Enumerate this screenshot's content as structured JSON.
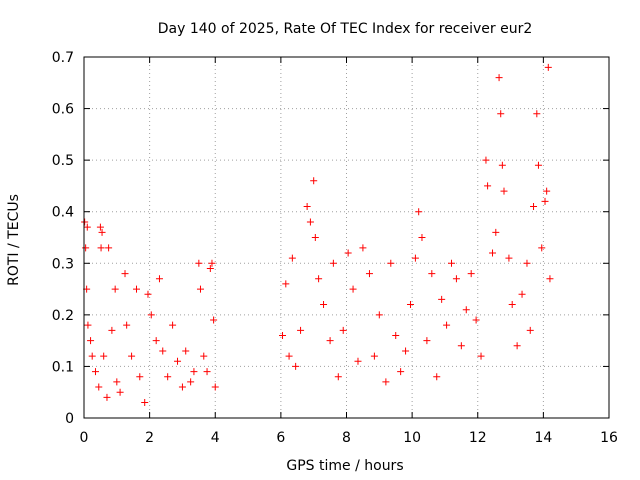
{
  "chart_data": {
    "type": "scatter",
    "title": "Day 140 of 2025, Rate Of TEC Index for receiver eur2",
    "xlabel": "GPS time / hours",
    "ylabel": "ROTI / TECUs",
    "xlim": [
      0,
      16
    ],
    "ylim": [
      0,
      0.7
    ],
    "xticks": [
      "0",
      "2",
      "4",
      "6",
      "8",
      "10",
      "12",
      "14",
      "16"
    ],
    "yticks": [
      "0",
      "0.1",
      "0.2",
      "0.3",
      "0.4",
      "0.5",
      "0.6",
      "0.7"
    ],
    "grid": true,
    "marker": "+",
    "color": "#ff0000",
    "series": [
      {
        "name": "eur2",
        "points": [
          [
            0.02,
            0.38
          ],
          [
            0.05,
            0.33
          ],
          [
            0.1,
            0.37
          ],
          [
            0.08,
            0.25
          ],
          [
            0.12,
            0.18
          ],
          [
            0.2,
            0.15
          ],
          [
            0.25,
            0.12
          ],
          [
            0.35,
            0.09
          ],
          [
            0.45,
            0.06
          ],
          [
            0.5,
            0.37
          ],
          [
            0.52,
            0.33
          ],
          [
            0.55,
            0.36
          ],
          [
            0.6,
            0.12
          ],
          [
            0.7,
            0.04
          ],
          [
            0.75,
            0.33
          ],
          [
            0.85,
            0.17
          ],
          [
            0.95,
            0.25
          ],
          [
            1.0,
            0.07
          ],
          [
            1.1,
            0.05
          ],
          [
            1.25,
            0.28
          ],
          [
            1.3,
            0.18
          ],
          [
            1.45,
            0.12
          ],
          [
            1.6,
            0.25
          ],
          [
            1.7,
            0.08
          ],
          [
            1.85,
            0.03
          ],
          [
            1.95,
            0.24
          ],
          [
            2.05,
            0.2
          ],
          [
            2.2,
            0.15
          ],
          [
            2.3,
            0.27
          ],
          [
            2.4,
            0.13
          ],
          [
            2.55,
            0.08
          ],
          [
            2.7,
            0.18
          ],
          [
            2.85,
            0.11
          ],
          [
            3.0,
            0.06
          ],
          [
            3.1,
            0.13
          ],
          [
            3.25,
            0.07
          ],
          [
            3.35,
            0.09
          ],
          [
            3.5,
            0.3
          ],
          [
            3.55,
            0.25
          ],
          [
            3.65,
            0.12
          ],
          [
            3.75,
            0.09
          ],
          [
            3.85,
            0.29
          ],
          [
            3.9,
            0.3
          ],
          [
            3.95,
            0.19
          ],
          [
            4.0,
            0.06
          ],
          [
            6.05,
            0.16
          ],
          [
            6.15,
            0.26
          ],
          [
            6.25,
            0.12
          ],
          [
            6.35,
            0.31
          ],
          [
            6.45,
            0.1
          ],
          [
            6.6,
            0.17
          ],
          [
            6.8,
            0.41
          ],
          [
            6.9,
            0.38
          ],
          [
            7.0,
            0.46
          ],
          [
            7.05,
            0.35
          ],
          [
            7.15,
            0.27
          ],
          [
            7.3,
            0.22
          ],
          [
            7.5,
            0.15
          ],
          [
            7.6,
            0.3
          ],
          [
            7.75,
            0.08
          ],
          [
            7.9,
            0.17
          ],
          [
            8.05,
            0.32
          ],
          [
            8.2,
            0.25
          ],
          [
            8.35,
            0.11
          ],
          [
            8.5,
            0.33
          ],
          [
            8.7,
            0.28
          ],
          [
            8.85,
            0.12
          ],
          [
            9.0,
            0.2
          ],
          [
            9.2,
            0.07
          ],
          [
            9.35,
            0.3
          ],
          [
            9.5,
            0.16
          ],
          [
            9.65,
            0.09
          ],
          [
            9.8,
            0.13
          ],
          [
            9.95,
            0.22
          ],
          [
            10.1,
            0.31
          ],
          [
            10.2,
            0.4
          ],
          [
            10.3,
            0.35
          ],
          [
            10.45,
            0.15
          ],
          [
            10.6,
            0.28
          ],
          [
            10.75,
            0.08
          ],
          [
            10.9,
            0.23
          ],
          [
            11.05,
            0.18
          ],
          [
            11.2,
            0.3
          ],
          [
            11.35,
            0.27
          ],
          [
            11.5,
            0.14
          ],
          [
            11.65,
            0.21
          ],
          [
            11.8,
            0.28
          ],
          [
            11.95,
            0.19
          ],
          [
            12.1,
            0.12
          ],
          [
            12.25,
            0.5
          ],
          [
            12.3,
            0.45
          ],
          [
            12.45,
            0.32
          ],
          [
            12.55,
            0.36
          ],
          [
            12.65,
            0.66
          ],
          [
            12.7,
            0.59
          ],
          [
            12.75,
            0.49
          ],
          [
            12.8,
            0.44
          ],
          [
            12.95,
            0.31
          ],
          [
            13.05,
            0.22
          ],
          [
            13.2,
            0.14
          ],
          [
            13.35,
            0.24
          ],
          [
            13.5,
            0.3
          ],
          [
            13.6,
            0.17
          ],
          [
            13.7,
            0.41
          ],
          [
            13.8,
            0.59
          ],
          [
            13.85,
            0.49
          ],
          [
            13.95,
            0.33
          ],
          [
            14.05,
            0.42
          ],
          [
            14.1,
            0.44
          ],
          [
            14.15,
            0.68
          ],
          [
            14.2,
            0.27
          ]
        ]
      }
    ]
  }
}
